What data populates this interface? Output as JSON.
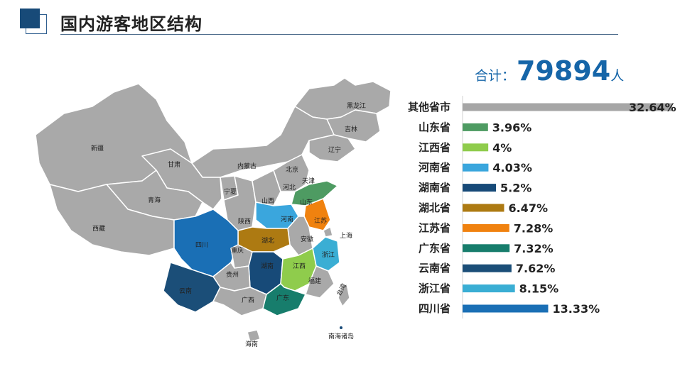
{
  "header": {
    "title": "国内游客地区结构"
  },
  "total": {
    "label": "合计：",
    "value": "79894",
    "unit": "人"
  },
  "map_labels": [
    "黑龙江",
    "吉林",
    "辽宁",
    "新疆",
    "内蒙古",
    "北京",
    "天津",
    "甘肃",
    "河北",
    "宁夏",
    "青海",
    "山西",
    "山东",
    "河南",
    "陕西",
    "江苏",
    "西藏",
    "四川",
    "湖北",
    "安徽",
    "上海",
    "重庆",
    "浙江",
    "湖南",
    "贵州",
    "江西",
    "云南",
    "福建",
    "广西",
    "广东",
    "台湾",
    "南海诸岛",
    "海南"
  ],
  "chart_data": {
    "type": "bar",
    "orientation": "horizontal",
    "categories": [
      "其他省市",
      "山东省",
      "江西省",
      "河南省",
      "湖南省",
      "湖北省",
      "江苏省",
      "广东省",
      "云南省",
      "浙江省",
      "四川省"
    ],
    "values": [
      32.64,
      3.96,
      4,
      4.03,
      5.2,
      6.47,
      7.28,
      7.32,
      7.62,
      8.15,
      13.33
    ],
    "value_labels": [
      "32.64%",
      "3.96%",
      "4%",
      "4.03%",
      "5.2%",
      "6.47%",
      "7.28%",
      "7.32%",
      "7.62%",
      "8.15%",
      "13.33%"
    ],
    "colors": [
      "#a6a6a6",
      "#4e9b62",
      "#8fcc4c",
      "#3aa6dd",
      "#174a78",
      "#ad7a12",
      "#f0820f",
      "#177d6c",
      "#1b4e78",
      "#3aaed4",
      "#1a6fb5"
    ],
    "xlim": [
      0,
      32.64
    ],
    "grid": false,
    "legend": "none"
  },
  "colors": {
    "map_gray": "#a9a9a9",
    "map_border": "#ffffff",
    "accent": "#1565a8"
  }
}
